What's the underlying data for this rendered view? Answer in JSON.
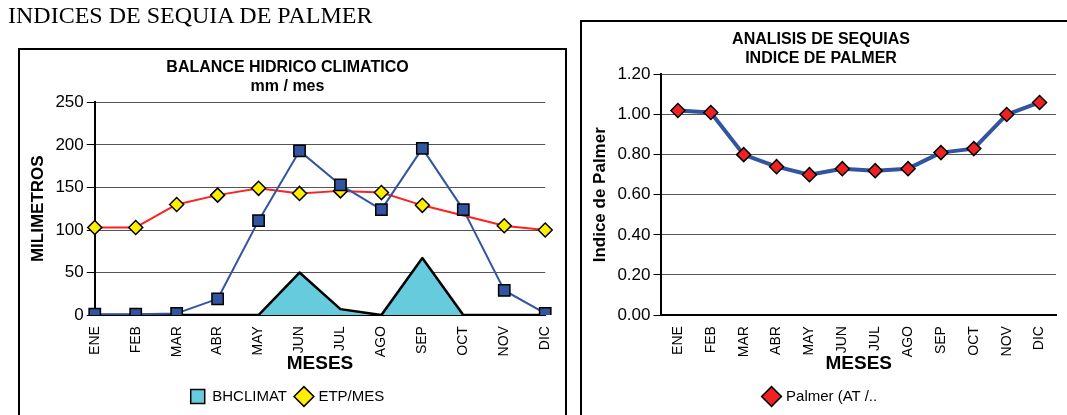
{
  "chart_data": [
    {
      "type": "line",
      "title": [
        "BALANCE HIDRICO CLIMATICO",
        "mm / mes"
      ],
      "xlabel": "MESES",
      "ylabel": "MILIMETROS",
      "annotations": [
        "INDICES DE SEQUIA DE PALMER"
      ],
      "categories": [
        "ENE",
        "FEB",
        "MAR",
        "ABR",
        "MAY",
        "JUN",
        "JUL",
        "AGO",
        "SEP",
        "OCT",
        "NOV",
        "DIC"
      ],
      "series": [
        {
          "name": "BHCLIMAT",
          "type": "area",
          "color": "#66ccdd",
          "marker": "none",
          "values": [
            0,
            0,
            0,
            0,
            0,
            50,
            7,
            0,
            67,
            0,
            0,
            0
          ]
        },
        {
          "type": "line",
          "color": "#3355a0",
          "marker": "square",
          "values": [
            1,
            1,
            2,
            19,
            111,
            193,
            153,
            124,
            196,
            124,
            29,
            2
          ]
        },
        {
          "name": "ETP/MES",
          "type": "line",
          "color": "#ff2020",
          "marker": "diamond",
          "values": [
            103,
            103,
            130,
            141,
            149,
            143,
            146,
            144,
            129,
            null,
            105,
            100
          ]
        }
      ],
      "ylim": [
        0,
        250
      ],
      "yticks": [
        0,
        50,
        100,
        150,
        200,
        250
      ],
      "grid": "y",
      "legend": "bottom"
    },
    {
      "type": "line",
      "title": [
        "ANALISIS DE SEQUIAS",
        "INDICE DE PALMER"
      ],
      "xlabel": "MESES",
      "ylabel": "Indice de Palmer",
      "categories": [
        "ENE",
        "FEB",
        "MAR",
        "ABR",
        "MAY",
        "JUN",
        "JUL",
        "AGO",
        "SEP",
        "OCT",
        "NOV",
        "DIC"
      ],
      "series": [
        {
          "name": "Palmer (AT /..",
          "type": "line",
          "color": "#3355a0",
          "marker": "diamond",
          "values": [
            1.02,
            1.01,
            0.8,
            0.74,
            0.7,
            0.73,
            0.72,
            0.73,
            0.81,
            0.83,
            1.0,
            1.06
          ]
        }
      ],
      "ylim": [
        0,
        1.2
      ],
      "yticks": [
        {
          "value": 0,
          "label": "0.00"
        },
        {
          "value": 0.2,
          "label": "0.20"
        },
        {
          "value": 0.4,
          "label": "0.40"
        },
        {
          "value": 0.6,
          "label": "0.60"
        },
        {
          "value": 0.8,
          "label": "0.80"
        },
        {
          "value": 1,
          "label": "1.00"
        },
        {
          "value": 1.2,
          "label": "1.20"
        }
      ],
      "grid": "y",
      "legend": "bottom"
    }
  ]
}
